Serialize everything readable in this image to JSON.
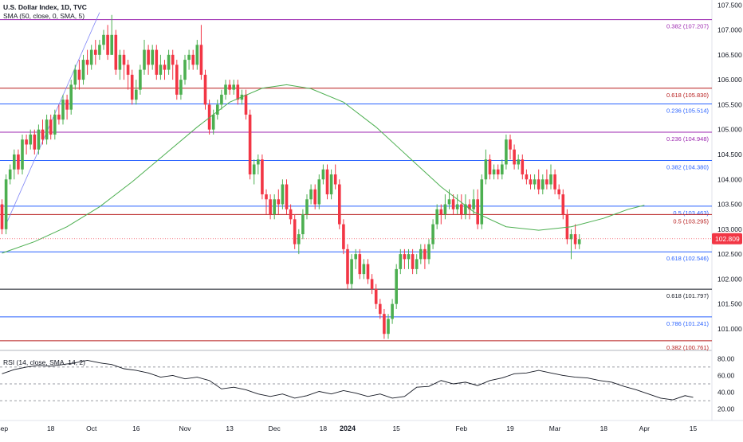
{
  "header": {
    "symbol": "U.S. Dollar Index, 1D, TVC",
    "sma_legend": "SMA (50, close, 0, SMA, 5)",
    "rsi_legend": "RSI (14, close, SMA, 14, 2)"
  },
  "chart_data": {
    "type": "candlestick",
    "price_axis": {
      "ylim": [
        100.6,
        107.6
      ],
      "ticks": [
        "107.500",
        "107.000",
        "106.500",
        "106.000",
        "105.500",
        "105.000",
        "104.500",
        "104.000",
        "103.500",
        "103.000",
        "102.500",
        "102.000",
        "101.500",
        "101.000"
      ],
      "tick_values": [
        107.5,
        107.0,
        106.5,
        106.0,
        105.5,
        105.0,
        104.5,
        104.0,
        103.5,
        103.0,
        102.5,
        102.0,
        101.5,
        101.0
      ]
    },
    "last_price": {
      "label": "102.809",
      "value": 102.809,
      "color": "#f23645"
    },
    "fib_levels": [
      {
        "label": "0.382 (107.207)",
        "value": 107.207,
        "color": "#9c27b0"
      },
      {
        "label": "0.618 (105.830)",
        "value": 105.83,
        "color": "#b71c1c"
      },
      {
        "label": "0.236 (105.514)",
        "value": 105.514,
        "color": "#2962ff"
      },
      {
        "label": "0.236 (104.948)",
        "value": 104.948,
        "color": "#9c27b0"
      },
      {
        "label": "0.382 (104.380)",
        "value": 104.38,
        "color": "#2962ff"
      },
      {
        "label": "0.5 (103.463)",
        "value": 103.463,
        "color": "#2962ff"
      },
      {
        "label": "0.5 (103.295)",
        "value": 103.295,
        "color": "#b71c1c"
      },
      {
        "label": "0.618 (102.546)",
        "value": 102.546,
        "color": "#2962ff"
      },
      {
        "label": "0.618 (101.797)",
        "value": 101.797,
        "color": "#131722"
      },
      {
        "label": "0.786 (101.241)",
        "value": 101.241,
        "color": "#2962ff"
      },
      {
        "label": "0.382 (100.761)",
        "value": 100.761,
        "color": "#b71c1c"
      }
    ],
    "x_axis": {
      "labels": [
        "Sep",
        "18",
        "Oct",
        "16",
        "Nov",
        "13",
        "Dec",
        "18",
        "2024",
        "15",
        "Feb",
        "19",
        "Mar",
        "18",
        "Apr",
        "15"
      ],
      "bold_label": "2024"
    },
    "candles": [
      [
        103.5,
        103.0,
        103.6,
        102.9
      ],
      [
        103.0,
        104.0,
        104.1,
        102.9
      ],
      [
        104.0,
        104.2,
        104.3,
        103.9
      ],
      [
        104.2,
        104.5,
        104.6,
        104.0
      ],
      [
        104.5,
        104.2,
        104.6,
        104.1
      ],
      [
        104.2,
        104.8,
        104.9,
        104.1
      ],
      [
        104.8,
        104.7,
        104.9,
        104.5
      ],
      [
        104.7,
        104.9,
        105.0,
        104.6
      ],
      [
        104.9,
        104.6,
        105.0,
        104.5
      ],
      [
        104.6,
        105.0,
        105.1,
        104.5
      ],
      [
        105.0,
        104.8,
        105.2,
        104.7
      ],
      [
        104.8,
        105.2,
        105.3,
        104.7
      ],
      [
        105.2,
        104.9,
        105.3,
        104.8
      ],
      [
        104.9,
        105.3,
        105.4,
        104.8
      ],
      [
        105.3,
        105.2,
        105.5,
        105.1
      ],
      [
        105.2,
        105.6,
        105.7,
        105.1
      ],
      [
        105.6,
        105.4,
        105.7,
        105.2
      ],
      [
        105.4,
        105.9,
        106.0,
        105.3
      ],
      [
        105.9,
        106.2,
        106.3,
        105.8
      ],
      [
        106.2,
        106.0,
        106.4,
        105.8
      ],
      [
        106.0,
        106.4,
        106.5,
        105.9
      ],
      [
        106.4,
        106.3,
        106.6,
        106.1
      ],
      [
        106.3,
        106.6,
        106.7,
        106.2
      ],
      [
        106.6,
        106.5,
        106.8,
        106.3
      ],
      [
        106.5,
        106.7,
        106.8,
        106.4
      ],
      [
        106.7,
        106.9,
        107.0,
        106.6
      ],
      [
        106.9,
        106.5,
        107.1,
        106.4
      ],
      [
        106.5,
        106.9,
        107.3,
        106.5
      ],
      [
        106.9,
        106.2,
        107.0,
        106.1
      ],
      [
        106.2,
        106.5,
        106.6,
        106.0
      ],
      [
        106.5,
        106.3,
        106.6,
        106.0
      ],
      [
        106.3,
        106.1,
        106.4,
        105.8
      ],
      [
        106.1,
        105.6,
        106.2,
        105.5
      ],
      [
        105.6,
        105.8,
        106.0,
        105.5
      ],
      [
        105.8,
        106.2,
        106.3,
        105.7
      ],
      [
        106.2,
        106.6,
        106.8,
        106.1
      ],
      [
        106.6,
        106.3,
        106.7,
        106.1
      ],
      [
        106.3,
        106.6,
        106.7,
        106.2
      ],
      [
        106.6,
        106.1,
        106.7,
        106.0
      ],
      [
        106.1,
        106.3,
        106.5,
        106.0
      ],
      [
        106.3,
        106.2,
        106.4,
        106.0
      ],
      [
        106.2,
        106.5,
        106.6,
        106.1
      ],
      [
        106.5,
        106.3,
        106.6,
        106.0
      ],
      [
        106.3,
        105.7,
        106.4,
        105.6
      ],
      [
        105.7,
        106.0,
        106.1,
        105.6
      ],
      [
        106.0,
        106.4,
        106.5,
        105.9
      ],
      [
        106.4,
        106.5,
        106.6,
        106.2
      ],
      [
        106.5,
        106.3,
        106.6,
        106.2
      ],
      [
        106.3,
        106.7,
        106.8,
        106.2
      ],
      [
        106.7,
        106.1,
        107.1,
        106.0
      ],
      [
        106.1,
        105.5,
        106.2,
        105.4
      ],
      [
        105.5,
        105.0,
        105.6,
        104.9
      ],
      [
        105.0,
        105.3,
        105.4,
        104.9
      ],
      [
        105.3,
        105.5,
        105.6,
        105.2
      ],
      [
        105.5,
        105.7,
        105.8,
        105.4
      ],
      [
        105.7,
        105.9,
        106.0,
        105.6
      ],
      [
        105.9,
        105.8,
        106.0,
        105.7
      ],
      [
        105.8,
        105.9,
        106.0,
        105.7
      ],
      [
        105.9,
        105.6,
        106.0,
        105.5
      ],
      [
        105.6,
        105.7,
        105.8,
        105.5
      ],
      [
        105.7,
        105.3,
        105.8,
        105.2
      ],
      [
        105.3,
        104.1,
        105.4,
        104.0
      ],
      [
        104.1,
        104.3,
        104.4,
        103.9
      ],
      [
        104.3,
        104.4,
        104.5,
        104.1
      ],
      [
        104.4,
        103.7,
        104.5,
        103.6
      ],
      [
        103.7,
        103.6,
        103.8,
        103.3
      ],
      [
        103.6,
        103.3,
        103.7,
        103.2
      ],
      [
        103.3,
        103.6,
        103.7,
        103.2
      ],
      [
        103.6,
        103.5,
        103.8,
        103.3
      ],
      [
        103.5,
        103.9,
        104.0,
        103.4
      ],
      [
        103.9,
        103.4,
        104.0,
        103.3
      ],
      [
        103.4,
        103.2,
        103.5,
        103.1
      ],
      [
        103.2,
        102.7,
        103.3,
        102.6
      ],
      [
        102.7,
        102.9,
        103.0,
        102.5
      ],
      [
        102.9,
        103.3,
        103.4,
        102.8
      ],
      [
        103.3,
        103.6,
        103.7,
        103.2
      ],
      [
        103.6,
        103.8,
        103.9,
        103.5
      ],
      [
        103.8,
        103.5,
        103.9,
        103.4
      ],
      [
        103.5,
        104.0,
        104.1,
        103.4
      ],
      [
        104.0,
        104.2,
        104.3,
        103.9
      ],
      [
        104.2,
        103.7,
        104.3,
        103.6
      ],
      [
        103.7,
        104.1,
        104.2,
        103.6
      ],
      [
        104.1,
        103.9,
        104.3,
        103.8
      ],
      [
        103.9,
        103.1,
        104.0,
        103.0
      ],
      [
        103.1,
        102.6,
        103.2,
        102.5
      ],
      [
        102.6,
        101.9,
        102.7,
        101.8
      ],
      [
        101.9,
        102.4,
        102.5,
        101.8
      ],
      [
        102.4,
        102.5,
        102.6,
        102.2
      ],
      [
        102.5,
        102.1,
        102.6,
        102.0
      ],
      [
        102.1,
        102.3,
        102.4,
        102.0
      ],
      [
        102.3,
        102.0,
        102.4,
        101.9
      ],
      [
        102.0,
        101.8,
        102.1,
        101.7
      ],
      [
        101.8,
        101.5,
        101.9,
        101.4
      ],
      [
        101.5,
        101.3,
        101.6,
        101.2
      ],
      [
        101.3,
        100.9,
        101.4,
        100.8
      ],
      [
        100.9,
        101.2,
        101.3,
        100.8
      ],
      [
        101.2,
        101.5,
        101.6,
        101.1
      ],
      [
        101.5,
        102.2,
        102.3,
        101.4
      ],
      [
        102.2,
        102.5,
        102.6,
        102.1
      ],
      [
        102.5,
        102.4,
        102.6,
        102.2
      ],
      [
        102.4,
        102.5,
        102.6,
        102.2
      ],
      [
        102.5,
        102.2,
        102.6,
        102.1
      ],
      [
        102.2,
        102.4,
        102.5,
        102.1
      ],
      [
        102.4,
        102.6,
        102.7,
        102.3
      ],
      [
        102.6,
        102.4,
        102.7,
        102.2
      ],
      [
        102.4,
        102.7,
        102.8,
        102.3
      ],
      [
        102.7,
        103.1,
        103.2,
        102.6
      ],
      [
        103.1,
        103.4,
        103.5,
        103.0
      ],
      [
        103.4,
        103.3,
        103.5,
        103.1
      ],
      [
        103.3,
        103.5,
        103.7,
        103.2
      ],
      [
        103.5,
        103.6,
        103.8,
        103.4
      ],
      [
        103.6,
        103.4,
        103.7,
        103.3
      ],
      [
        103.4,
        103.5,
        103.7,
        103.3
      ],
      [
        103.5,
        103.3,
        103.7,
        103.2
      ],
      [
        103.3,
        103.5,
        103.7,
        103.2
      ],
      [
        103.5,
        103.4,
        103.6,
        103.2
      ],
      [
        103.4,
        103.6,
        103.8,
        103.3
      ],
      [
        103.6,
        103.1,
        103.8,
        103.0
      ],
      [
        103.1,
        104.0,
        104.1,
        103.0
      ],
      [
        104.0,
        104.4,
        104.6,
        103.9
      ],
      [
        104.4,
        104.1,
        104.5,
        104.0
      ],
      [
        104.1,
        104.2,
        104.3,
        104.0
      ],
      [
        104.2,
        104.1,
        104.3,
        104.0
      ],
      [
        104.1,
        104.3,
        104.4,
        104.0
      ],
      [
        104.3,
        104.8,
        104.9,
        104.2
      ],
      [
        104.8,
        104.6,
        104.9,
        104.4
      ],
      [
        104.6,
        104.3,
        104.7,
        104.2
      ],
      [
        104.3,
        104.4,
        104.5,
        104.2
      ],
      [
        104.4,
        104.1,
        104.5,
        104.0
      ],
      [
        104.1,
        104.0,
        104.2,
        103.9
      ],
      [
        104.0,
        103.9,
        104.1,
        103.8
      ],
      [
        103.9,
        104.0,
        104.1,
        103.8
      ],
      [
        104.0,
        103.8,
        104.2,
        103.7
      ],
      [
        103.8,
        104.0,
        104.1,
        103.7
      ],
      [
        104.0,
        103.9,
        104.2,
        103.8
      ],
      [
        103.9,
        104.1,
        104.3,
        103.8
      ],
      [
        104.1,
        103.8,
        104.2,
        103.7
      ],
      [
        103.8,
        103.7,
        103.9,
        103.6
      ],
      [
        103.7,
        103.3,
        103.8,
        103.2
      ],
      [
        103.3,
        102.8,
        103.4,
        102.7
      ],
      [
        102.8,
        102.9,
        103.0,
        102.4
      ],
      [
        102.9,
        102.7,
        103.1,
        102.6
      ],
      [
        102.7,
        102.8,
        102.9,
        102.6
      ]
    ],
    "sma": [
      [
        0,
        102.52
      ],
      [
        8,
        102.75
      ],
      [
        16,
        103.05
      ],
      [
        24,
        103.45
      ],
      [
        32,
        103.95
      ],
      [
        40,
        104.5
      ],
      [
        48,
        105.05
      ],
      [
        56,
        105.55
      ],
      [
        64,
        105.83
      ],
      [
        70,
        105.9
      ],
      [
        76,
        105.82
      ],
      [
        84,
        105.55
      ],
      [
        92,
        105.05
      ],
      [
        100,
        104.45
      ],
      [
        108,
        103.85
      ],
      [
        116,
        103.35
      ],
      [
        124,
        103.05
      ],
      [
        132,
        102.98
      ],
      [
        140,
        103.05
      ],
      [
        148,
        103.22
      ],
      [
        154,
        103.4
      ],
      [
        158,
        103.48
      ]
    ],
    "rsi": {
      "ylim": [
        14,
        86
      ],
      "ticks": [
        "80.00",
        "60.00",
        "40.00",
        "20.00"
      ],
      "tick_values": [
        80,
        60,
        40,
        20
      ],
      "bands": [
        70,
        50,
        30
      ],
      "values": [
        [
          0,
          62
        ],
        [
          3,
          67
        ],
        [
          6,
          70
        ],
        [
          9,
          72
        ],
        [
          12,
          71
        ],
        [
          15,
          73
        ],
        [
          18,
          75
        ],
        [
          21,
          78
        ],
        [
          24,
          75
        ],
        [
          27,
          73
        ],
        [
          30,
          68
        ],
        [
          33,
          66
        ],
        [
          36,
          63
        ],
        [
          39,
          58
        ],
        [
          42,
          60
        ],
        [
          45,
          56
        ],
        [
          48,
          58
        ],
        [
          51,
          54
        ],
        [
          54,
          44
        ],
        [
          57,
          46
        ],
        [
          60,
          43
        ],
        [
          63,
          38
        ],
        [
          66,
          35
        ],
        [
          69,
          38
        ],
        [
          72,
          33
        ],
        [
          75,
          36
        ],
        [
          78,
          41
        ],
        [
          81,
          38
        ],
        [
          84,
          42
        ],
        [
          87,
          39
        ],
        [
          90,
          35
        ],
        [
          93,
          38
        ],
        [
          96,
          33
        ],
        [
          99,
          35
        ],
        [
          102,
          46
        ],
        [
          105,
          47
        ],
        [
          108,
          54
        ],
        [
          111,
          50
        ],
        [
          114,
          52
        ],
        [
          117,
          48
        ],
        [
          120,
          54
        ],
        [
          123,
          57
        ],
        [
          126,
          62
        ],
        [
          129,
          63
        ],
        [
          132,
          66
        ],
        [
          135,
          63
        ],
        [
          138,
          60
        ],
        [
          141,
          58
        ],
        [
          144,
          57
        ],
        [
          147,
          54
        ],
        [
          150,
          52
        ],
        [
          153,
          47
        ],
        [
          156,
          43
        ],
        [
          159,
          38
        ],
        [
          162,
          33
        ],
        [
          165,
          31
        ],
        [
          168,
          36
        ],
        [
          170,
          34
        ]
      ]
    },
    "title": "",
    "xlabel": "",
    "ylabel": "",
    "grid": false,
    "legend_placement": "top-left"
  }
}
